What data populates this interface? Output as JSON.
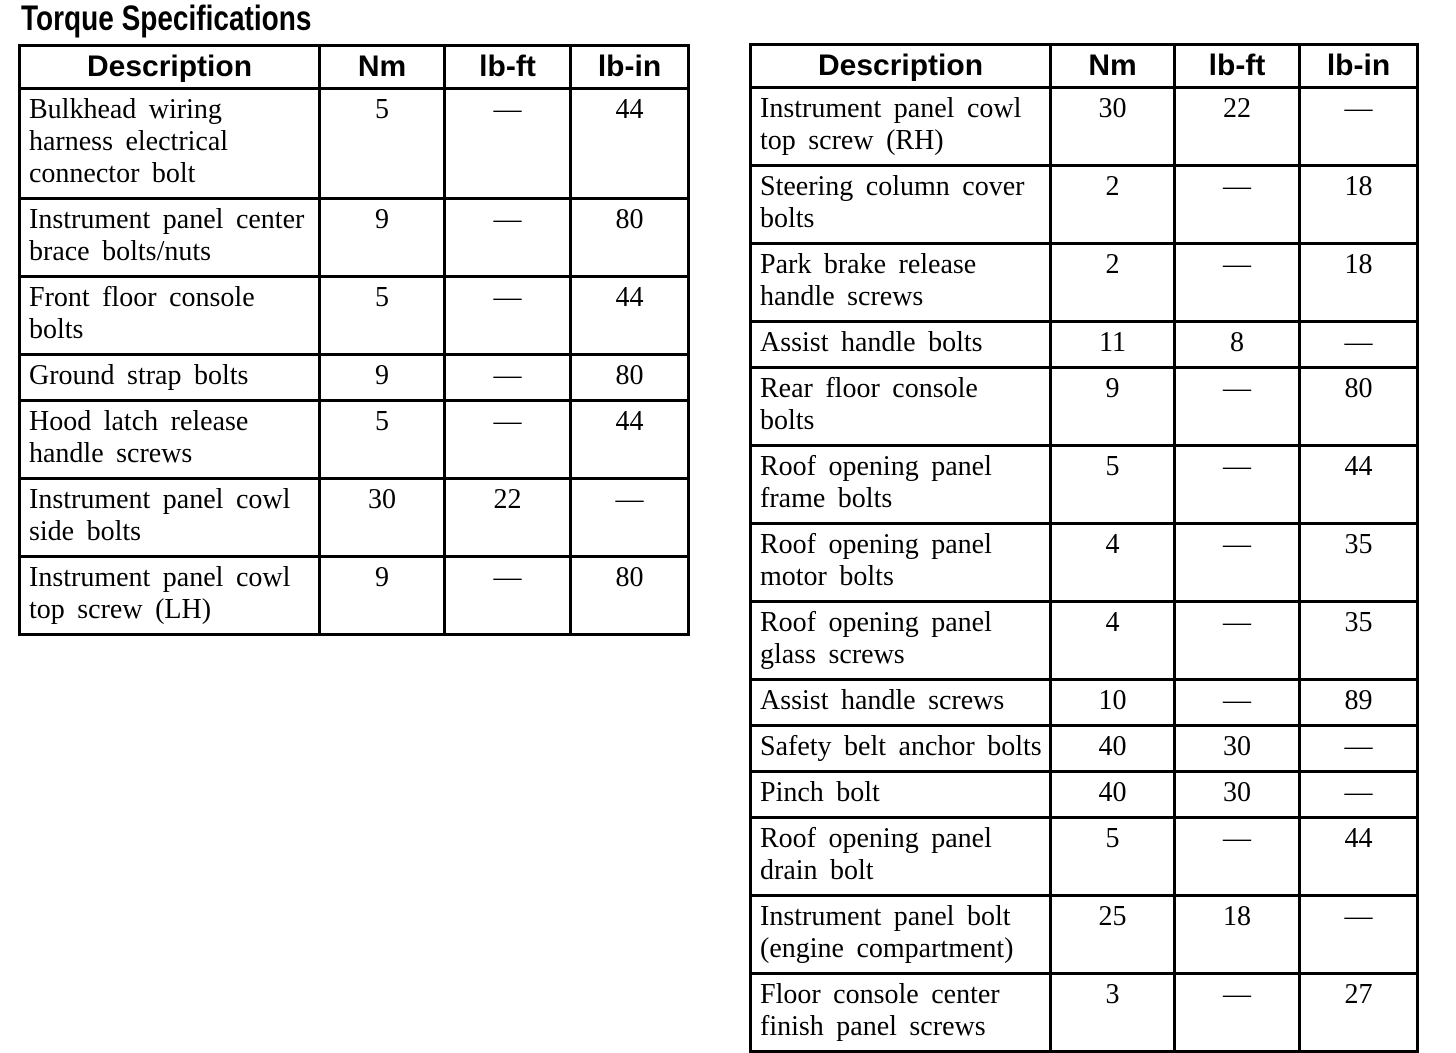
{
  "title": "Torque Specifications",
  "tables": [
    {
      "headers": [
        "Description",
        "Nm",
        "lb-ft",
        "lb-in"
      ],
      "rows": [
        {
          "description": "Bulkhead wiring harness electrical connector bolt",
          "nm": "5",
          "lb_ft": "—",
          "lb_in": "44"
        },
        {
          "description": "Instrument panel center brace bolts/nuts",
          "nm": "9",
          "lb_ft": "—",
          "lb_in": "80"
        },
        {
          "description": "Front floor console bolts",
          "nm": "5",
          "lb_ft": "—",
          "lb_in": "44"
        },
        {
          "description": "Ground strap bolts",
          "nm": "9",
          "lb_ft": "—",
          "lb_in": "80"
        },
        {
          "description": "Hood latch release handle screws",
          "nm": "5",
          "lb_ft": "—",
          "lb_in": "44"
        },
        {
          "description": "Instrument panel cowl side bolts",
          "nm": "30",
          "lb_ft": "22",
          "lb_in": "—"
        },
        {
          "description": "Instrument panel cowl top screw (LH)",
          "nm": "9",
          "lb_ft": "—",
          "lb_in": "80"
        }
      ]
    },
    {
      "headers": [
        "Description",
        "Nm",
        "lb-ft",
        "lb-in"
      ],
      "rows": [
        {
          "description": "Instrument panel cowl top screw (RH)",
          "nm": "30",
          "lb_ft": "22",
          "lb_in": "—"
        },
        {
          "description": "Steering column cover bolts",
          "nm": "2",
          "lb_ft": "—",
          "lb_in": "18"
        },
        {
          "description": "Park brake release handle screws",
          "nm": "2",
          "lb_ft": "—",
          "lb_in": "18"
        },
        {
          "description": "Assist handle bolts",
          "nm": "11",
          "lb_ft": "8",
          "lb_in": "—"
        },
        {
          "description": "Rear floor console bolts",
          "nm": "9",
          "lb_ft": "—",
          "lb_in": "80"
        },
        {
          "description": "Roof opening panel frame bolts",
          "nm": "5",
          "lb_ft": "—",
          "lb_in": "44"
        },
        {
          "description": "Roof opening panel motor bolts",
          "nm": "4",
          "lb_ft": "—",
          "lb_in": "35"
        },
        {
          "description": "Roof opening panel glass screws",
          "nm": "4",
          "lb_ft": "—",
          "lb_in": "35"
        },
        {
          "description": "Assist handle screws",
          "nm": "10",
          "lb_ft": "—",
          "lb_in": "89"
        },
        {
          "description": "Safety belt anchor bolts",
          "nm": "40",
          "lb_ft": "30",
          "lb_in": "—"
        },
        {
          "description": "Pinch bolt",
          "nm": "40",
          "lb_ft": "30",
          "lb_in": "—"
        },
        {
          "description": "Roof opening panel drain bolt",
          "nm": "5",
          "lb_ft": "—",
          "lb_in": "44"
        },
        {
          "description": "Instrument panel bolt (engine compartment)",
          "nm": "25",
          "lb_ft": "18",
          "lb_in": "—"
        },
        {
          "description": "Floor console center finish panel screws",
          "nm": "3",
          "lb_ft": "—",
          "lb_in": "27"
        }
      ]
    }
  ]
}
